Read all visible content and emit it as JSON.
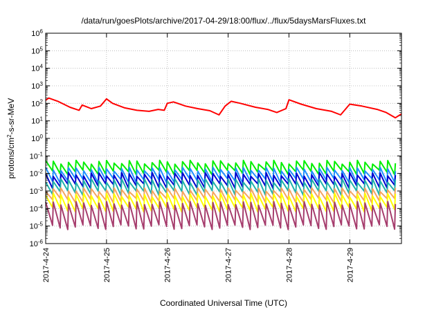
{
  "chart_data": {
    "type": "line",
    "title": "/data/run/goesPlots/archive/2017-04-29/18:00/flux/../flux/5daysMarsFluxes.txt",
    "xlabel": "Coordinated Universal Time (UTC)",
    "ylabel": {
      "base": "protons/cm",
      "sup": "2",
      "rest": "-s-sr-MeV"
    },
    "yscale": "log",
    "ylim": [
      1e-06,
      1000000.0
    ],
    "xlim": [
      0,
      5.85
    ],
    "grid": true,
    "y_ticks": [
      {
        "v": 1000000.0,
        "base": "10",
        "exp": "6"
      },
      {
        "v": 100000.0,
        "base": "10",
        "exp": "5"
      },
      {
        "v": 10000.0,
        "base": "10",
        "exp": "4"
      },
      {
        "v": 1000.0,
        "base": "10",
        "exp": "3"
      },
      {
        "v": 100.0,
        "base": "10",
        "exp": "2"
      },
      {
        "v": 10.0,
        "base": "10",
        "exp": "1"
      },
      {
        "v": 1.0,
        "base": "10",
        "exp": "0"
      },
      {
        "v": 0.1,
        "base": "10",
        "exp": "-1"
      },
      {
        "v": 0.01,
        "base": "10",
        "exp": "-2"
      },
      {
        "v": 0.001,
        "base": "10",
        "exp": "-3"
      },
      {
        "v": 0.0001,
        "base": "10",
        "exp": "-4"
      },
      {
        "v": 1e-05,
        "base": "10",
        "exp": "-5"
      },
      {
        "v": 1e-06,
        "base": "10",
        "exp": "-6"
      }
    ],
    "x_ticks": [
      {
        "v": 0,
        "label": "2017-4-24"
      },
      {
        "v": 1,
        "label": "2017-4-25"
      },
      {
        "v": 2,
        "label": "2017-4-26"
      },
      {
        "v": 3,
        "label": "2017-4-27"
      },
      {
        "v": 4,
        "label": "2017-4-28"
      },
      {
        "v": 5,
        "label": "2017-4-29"
      }
    ],
    "series": [
      {
        "color": "#ff0000",
        "points": [
          [
            0.0,
            150
          ],
          [
            0.05,
            200
          ],
          [
            0.2,
            130
          ],
          [
            0.4,
            60
          ],
          [
            0.55,
            40
          ],
          [
            0.6,
            80
          ],
          [
            0.75,
            50
          ],
          [
            0.9,
            70
          ],
          [
            1.0,
            180
          ],
          [
            1.1,
            100
          ],
          [
            1.3,
            55
          ],
          [
            1.5,
            40
          ],
          [
            1.7,
            35
          ],
          [
            1.85,
            45
          ],
          [
            1.95,
            40
          ],
          [
            2.0,
            100
          ],
          [
            2.1,
            120
          ],
          [
            2.3,
            70
          ],
          [
            2.5,
            50
          ],
          [
            2.7,
            38
          ],
          [
            2.85,
            22
          ],
          [
            2.95,
            70
          ],
          [
            3.05,
            130
          ],
          [
            3.2,
            100
          ],
          [
            3.45,
            60
          ],
          [
            3.65,
            45
          ],
          [
            3.8,
            30
          ],
          [
            3.95,
            50
          ],
          [
            4.0,
            160
          ],
          [
            4.2,
            90
          ],
          [
            4.45,
            50
          ],
          [
            4.7,
            35
          ],
          [
            4.85,
            22
          ],
          [
            5.0,
            90
          ],
          [
            5.2,
            70
          ],
          [
            5.45,
            45
          ],
          [
            5.6,
            30
          ],
          [
            5.75,
            15
          ],
          [
            5.85,
            25
          ]
        ]
      },
      {
        "color": "#00ee00",
        "high": 0.045,
        "low": 0.012
      },
      {
        "color": "#1e90ff",
        "high": 0.018,
        "low": 0.004
      },
      {
        "color": "#0000cd",
        "high": 0.009,
        "low": 0.002
      },
      {
        "color": "#20b2aa",
        "high": 0.004,
        "low": 0.0008
      },
      {
        "color": "#f4a460",
        "high": 0.0012,
        "low": 0.0003
      },
      {
        "color": "#ffff00",
        "high": 0.0006,
        "low": 9e-05
      },
      {
        "color": "#a63d6d",
        "high": 0.0002,
        "low": 9e-06
      }
    ]
  }
}
